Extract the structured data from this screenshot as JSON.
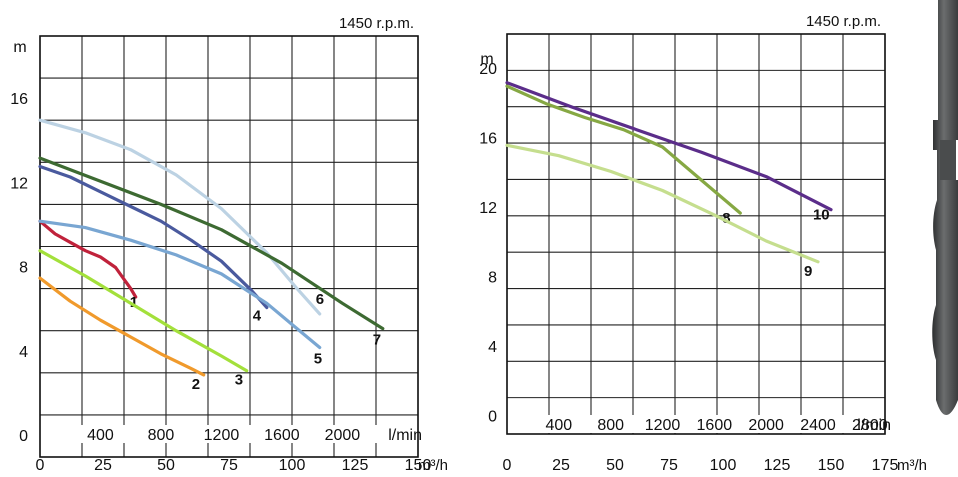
{
  "chart_data": [
    {
      "type": "line",
      "speed_label": "1450 r.p.m.",
      "y_unit": "m",
      "x_unit_lmin": "l/min",
      "x_unit_m3h": "m³/h",
      "ylim": [
        -1,
        19
      ],
      "xlim_lmin": [
        0,
        2500
      ],
      "xlim_m3h": [
        0,
        150
      ],
      "y_ticks": [
        0,
        4,
        8,
        12,
        16
      ],
      "y_tick_labels": [
        "0",
        "4",
        "8",
        "12",
        "16"
      ],
      "x_ticks_lmin": [
        400,
        800,
        1200,
        1600,
        2000
      ],
      "x_tick_labels_lmin": [
        "400",
        "800",
        "1200",
        "1600",
        "2000"
      ],
      "x_ticks_m3h": [
        0,
        25,
        50,
        75,
        100,
        125,
        150
      ],
      "x_tick_labels_m3h": [
        "0",
        "25",
        "50",
        "75",
        "100",
        "125",
        "150"
      ],
      "grid": true,
      "series": [
        {
          "name": "1",
          "color": "#c0223b",
          "x": [
            0,
            100,
            200,
            300,
            400,
            500,
            600,
            633
          ],
          "y": [
            10.2,
            9.6,
            9.2,
            8.8,
            8.5,
            8.0,
            7.0,
            6.6
          ]
        },
        {
          "name": "2",
          "color": "#f09a2c",
          "x": [
            0,
            200,
            400,
            600,
            800,
            1000,
            1083
          ],
          "y": [
            7.5,
            6.4,
            5.5,
            4.7,
            3.9,
            3.2,
            2.9
          ]
        },
        {
          "name": "3",
          "color": "#a3e03b",
          "x": [
            0,
            300,
            600,
            900,
            1200,
            1367
          ],
          "y": [
            8.8,
            7.6,
            6.3,
            5.0,
            3.8,
            3.1
          ]
        },
        {
          "name": "4",
          "color": "#4a5a9e",
          "x": [
            0,
            200,
            400,
            600,
            800,
            1000,
            1200,
            1400,
            1500
          ],
          "y": [
            12.8,
            12.3,
            11.6,
            10.9,
            10.2,
            9.3,
            8.3,
            6.9,
            6.1
          ]
        },
        {
          "name": "5",
          "color": "#79a6d2",
          "x": [
            0,
            300,
            600,
            900,
            1200,
            1500,
            1700,
            1850
          ],
          "y": [
            10.2,
            9.9,
            9.3,
            8.6,
            7.7,
            6.3,
            5.1,
            4.2
          ]
        },
        {
          "name": "6",
          "color": "#bcd2e3",
          "x": [
            0,
            300,
            600,
            900,
            1200,
            1500,
            1700,
            1850
          ],
          "y": [
            15.0,
            14.4,
            13.6,
            12.4,
            10.8,
            8.7,
            7.0,
            5.8
          ]
        },
        {
          "name": "7",
          "color": "#3d6a32",
          "x": [
            0,
            400,
            800,
            1200,
            1600,
            2000,
            2267
          ],
          "y": [
            13.2,
            12.1,
            11.0,
            9.8,
            8.2,
            6.3,
            5.1
          ]
        }
      ]
    },
    {
      "type": "line",
      "speed_label": "1450 r.p.m.",
      "y_unit": "m",
      "x_unit_lmin": "l/min",
      "x_unit_m3h": "m³/h",
      "ylim": [
        -1,
        22
      ],
      "xlim_lmin": [
        0,
        2917
      ],
      "xlim_m3h": [
        0,
        175
      ],
      "y_ticks": [
        0,
        4,
        8,
        12,
        16,
        20
      ],
      "y_tick_labels": [
        "0",
        "4",
        "8",
        "12",
        "16",
        "20"
      ],
      "x_ticks_lmin": [
        400,
        800,
        1200,
        1600,
        2000,
        2400,
        2800
      ],
      "x_tick_labels_lmin": [
        "400",
        "800",
        "1200",
        "1600",
        "2000",
        "2400",
        "2800"
      ],
      "x_ticks_m3h": [
        0,
        25,
        50,
        75,
        100,
        125,
        150,
        175
      ],
      "x_tick_labels_m3h": [
        "0",
        "25",
        "50",
        "75",
        "100",
        "125",
        "150",
        "175"
      ],
      "grid": true,
      "series": [
        {
          "name": "8",
          "color": "#86a843",
          "x": [
            0,
            300,
            600,
            900,
            1200,
            1500,
            1800
          ],
          "y": [
            19.0,
            18.0,
            17.2,
            16.5,
            15.5,
            13.6,
            11.7
          ]
        },
        {
          "name": "9",
          "color": "#c5de8e",
          "x": [
            0,
            400,
            800,
            1200,
            1600,
            2000,
            2400
          ],
          "y": [
            15.6,
            15.0,
            14.1,
            13.0,
            11.6,
            10.1,
            8.9
          ]
        },
        {
          "name": "10",
          "color": "#5b2d8a",
          "x": [
            0,
            500,
            1000,
            1500,
            2000,
            2500
          ],
          "y": [
            19.2,
            17.8,
            16.5,
            15.2,
            13.8,
            11.9
          ]
        }
      ]
    }
  ]
}
